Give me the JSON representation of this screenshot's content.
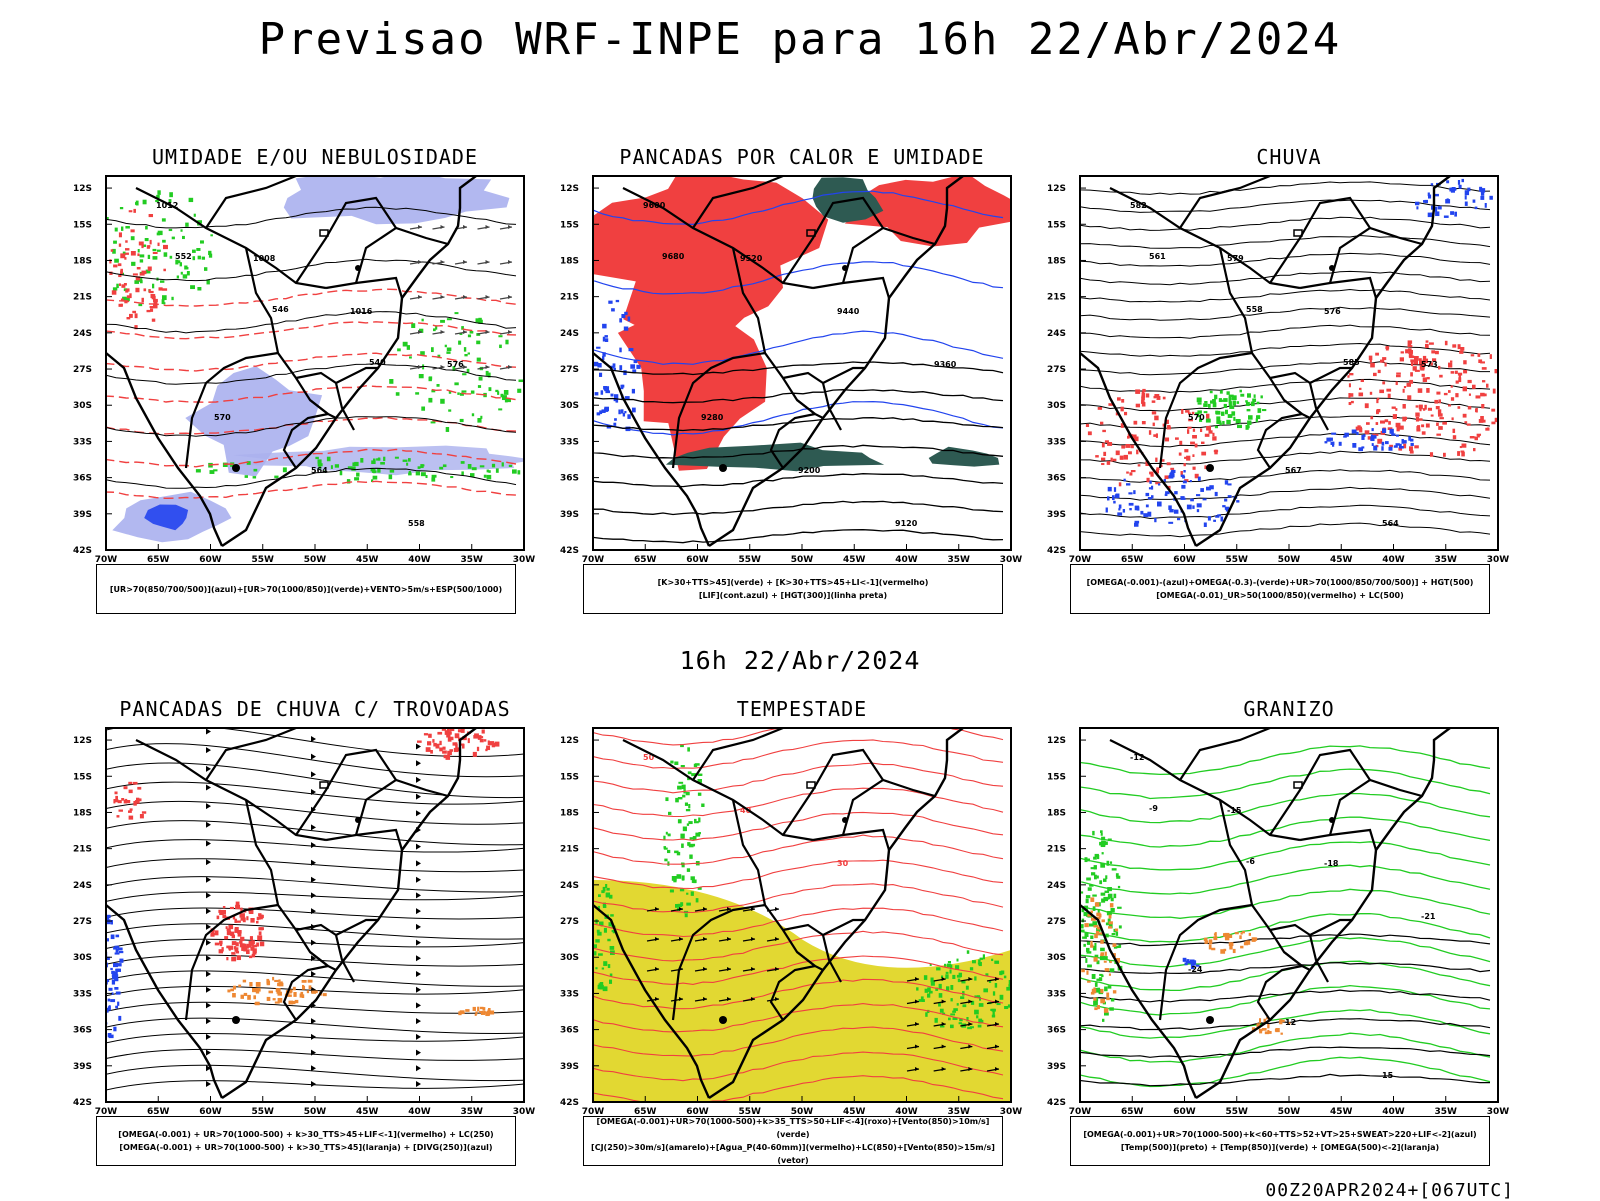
{
  "page": {
    "title": "Previsao WRF-INPE  para 16h 22/Abr/2024",
    "mid_title": "16h 22/Abr/2024",
    "footer": "00Z20APR2024+[067UTC]"
  },
  "axes": {
    "lat_labels": [
      "12S",
      "15S",
      "18S",
      "21S",
      "24S",
      "27S",
      "30S",
      "33S",
      "36S",
      "39S",
      "42S"
    ],
    "lon_labels": [
      "70W",
      "65W",
      "60W",
      "55W",
      "50W",
      "45W",
      "40W",
      "35W",
      "30W"
    ]
  },
  "colors": {
    "red": "#f04040",
    "green": "#22cc22",
    "blue": "#2244ee",
    "lavender": "#aab0ee",
    "dark_teal": "#2e5a52",
    "yellow": "#e2d832",
    "orange": "#ee8833",
    "black": "#000000"
  },
  "panels": [
    {
      "id": "umidade",
      "title": "UMIDADE E/OU NEBULOSIDADE",
      "legend": [
        "[UR>70(850/700/500)](azul)+[UR>70(1000/850)](verde)+VENTO>5m/s+ESP(500/1000)"
      ],
      "contour_labels": [
        "1012",
        "1008",
        "1016",
        "576",
        "570",
        "564",
        "558",
        "552",
        "546",
        "540"
      ]
    },
    {
      "id": "pancadas-calor",
      "title": "PANCADAS POR CALOR E UMIDADE",
      "legend": [
        "[K>30+TTS>45](verde)  +  [K>30+TTS>45+LI<-1](vermelho)",
        "[LIF](cont.azul)  +  [HGT(300)](linha preta)"
      ],
      "contour_labels": [
        "9600",
        "9520",
        "9440",
        "9360",
        "9280",
        "9200",
        "9120",
        "9680"
      ]
    },
    {
      "id": "chuva",
      "title": "CHUVA",
      "legend": [
        "[OMEGA(-0.001)-(azul)+OMEGA(-0.3)-(verde)+UR>70(1000/850/700/500)]  +  HGT(500)",
        "[OMEGA(-0.01)_UR>50(1000/850)(vermelho) + LC(500)"
      ],
      "contour_labels": [
        "582",
        "579",
        "576",
        "573",
        "570",
        "567",
        "564",
        "561",
        "558",
        "585"
      ]
    },
    {
      "id": "pancadas-trovoadas",
      "title": "PANCADAS DE CHUVA C/ TROVOADAS",
      "legend": [
        "[OMEGA(-0.001) + UR>70(1000-500) + k>30_TTS>45+LIF<-1](vermelho) + LC(250)",
        "[OMEGA(-0.001) + UR>70(1000-500) + k>30_TTS>45](laranja) + [DIVG(250)](azul)"
      ],
      "contour_labels": []
    },
    {
      "id": "tempestade",
      "title": "TEMPESTADE",
      "legend": [
        "[OMEGA(-0.001)+UR>70(1000-500)+k>35_TTS>50+LIF<-4](roxo)+[Vento(850)>10m/s](verde)",
        "[CJ(250)>30m/s](amarelo)+[Agua_P(40-60mm)](vermelho)+LC(850)+[Vento(850)>15m/s](vetor)"
      ],
      "contour_labels": [
        "50",
        "40",
        "30"
      ]
    },
    {
      "id": "granizo",
      "title": "GRANIZO",
      "legend": [
        "[OMEGA(-0.001)+UR>70(1000-500)+k<60+TTS>52+VT>25+SWEAT>220+LIF<-2](azul)",
        "[Temp(500)](preto) + [Temp(850)](verde) + [OMEGA(500)<-2](laranja)"
      ],
      "contour_labels": [
        "-12",
        "-15",
        "-18",
        "-21",
        "-24",
        "12",
        "15",
        "-9",
        "-6"
      ]
    }
  ]
}
